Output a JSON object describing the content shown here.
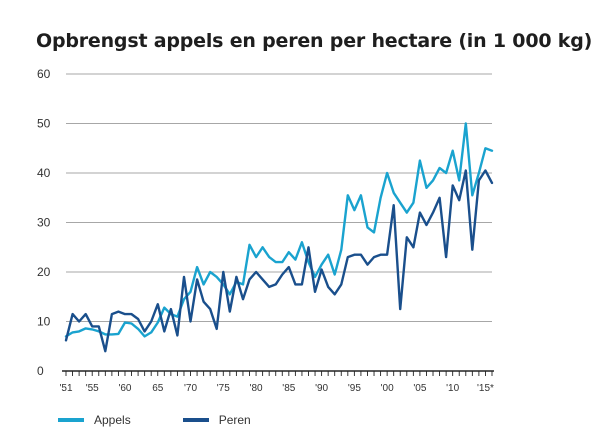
{
  "chart_data": {
    "type": "line",
    "title": "Opbrengst appels en peren per hectare (in 1 000 kg)",
    "ylim": [
      0,
      60
    ],
    "yticks": [
      0,
      10,
      20,
      30,
      40,
      50,
      60
    ],
    "xlim": [
      1951,
      2016
    ],
    "grid": true,
    "legend_position": "bottom-left",
    "xtick_labels": [
      {
        "x": 1951,
        "label": "'51"
      },
      {
        "x": 1955,
        "label": "'55"
      },
      {
        "x": 1960,
        "label": "'60"
      },
      {
        "x": 1965,
        "label": "65"
      },
      {
        "x": 1970,
        "label": "'70"
      },
      {
        "x": 1975,
        "label": "'75"
      },
      {
        "x": 1980,
        "label": "'80"
      },
      {
        "x": 1985,
        "label": "'85"
      },
      {
        "x": 1990,
        "label": "'90"
      },
      {
        "x": 1995,
        "label": "'95"
      },
      {
        "x": 2000,
        "label": "'00"
      },
      {
        "x": 2005,
        "label": "'05"
      },
      {
        "x": 2010,
        "label": "'10"
      },
      {
        "x": 2015,
        "label": "'15*"
      }
    ],
    "x": [
      1951,
      1952,
      1953,
      1954,
      1955,
      1956,
      1957,
      1958,
      1959,
      1960,
      1961,
      1962,
      1963,
      1964,
      1965,
      1966,
      1967,
      1968,
      1969,
      1970,
      1971,
      1972,
      1973,
      1974,
      1975,
      1976,
      1977,
      1978,
      1979,
      1980,
      1981,
      1982,
      1983,
      1984,
      1985,
      1986,
      1987,
      1988,
      1989,
      1990,
      1991,
      1992,
      1993,
      1994,
      1995,
      1996,
      1997,
      1998,
      1999,
      2000,
      2001,
      2002,
      2003,
      2004,
      2005,
      2006,
      2007,
      2008,
      2009,
      2010,
      2011,
      2012,
      2013,
      2014,
      2015,
      2016
    ],
    "series": [
      {
        "name": "Appels",
        "color": "#1aa3cf",
        "values": [
          7.0,
          7.8,
          8.0,
          8.6,
          8.4,
          8.0,
          7.4,
          7.4,
          7.5,
          9.8,
          9.6,
          8.5,
          7.0,
          7.8,
          9.8,
          12.8,
          11.5,
          11.0,
          14.5,
          16.0,
          21.0,
          17.5,
          20.0,
          19.0,
          17.5,
          15.5,
          18.0,
          17.5,
          25.5,
          23.0,
          25.0,
          23.0,
          22.0,
          22.0,
          24.0,
          22.5,
          26.0,
          22.0,
          19.0,
          21.5,
          23.5,
          19.5,
          24.5,
          35.5,
          32.5,
          35.5,
          29.0,
          28.0,
          35.0,
          40.0,
          36.0,
          34.0,
          32.0,
          34.0,
          42.5,
          37.0,
          38.5,
          41.0,
          40.0,
          44.5,
          38.5,
          50.0,
          35.5,
          40.0,
          45.0,
          44.5
        ]
      },
      {
        "name": "Peren",
        "color": "#1a4f8c",
        "values": [
          6.2,
          11.5,
          10.0,
          11.5,
          9.0,
          9.0,
          4.0,
          11.5,
          12.0,
          11.5,
          11.5,
          10.5,
          8.0,
          10.0,
          13.5,
          8.0,
          12.5,
          7.2,
          19.0,
          10.0,
          18.5,
          14.0,
          12.5,
          8.5,
          20.0,
          12.0,
          19.0,
          14.5,
          18.5,
          20.0,
          18.5,
          17.0,
          17.5,
          19.5,
          21.0,
          17.5,
          17.5,
          25.0,
          16.0,
          20.5,
          17.0,
          15.5,
          17.5,
          23.0,
          23.5,
          23.5,
          21.5,
          23.0,
          23.5,
          23.5,
          33.5,
          12.5,
          27.0,
          25.0,
          32.0,
          29.5,
          32.0,
          35.0,
          23.0,
          37.5,
          34.5,
          40.5,
          24.5,
          38.5,
          40.5,
          38.0
        ]
      }
    ]
  }
}
